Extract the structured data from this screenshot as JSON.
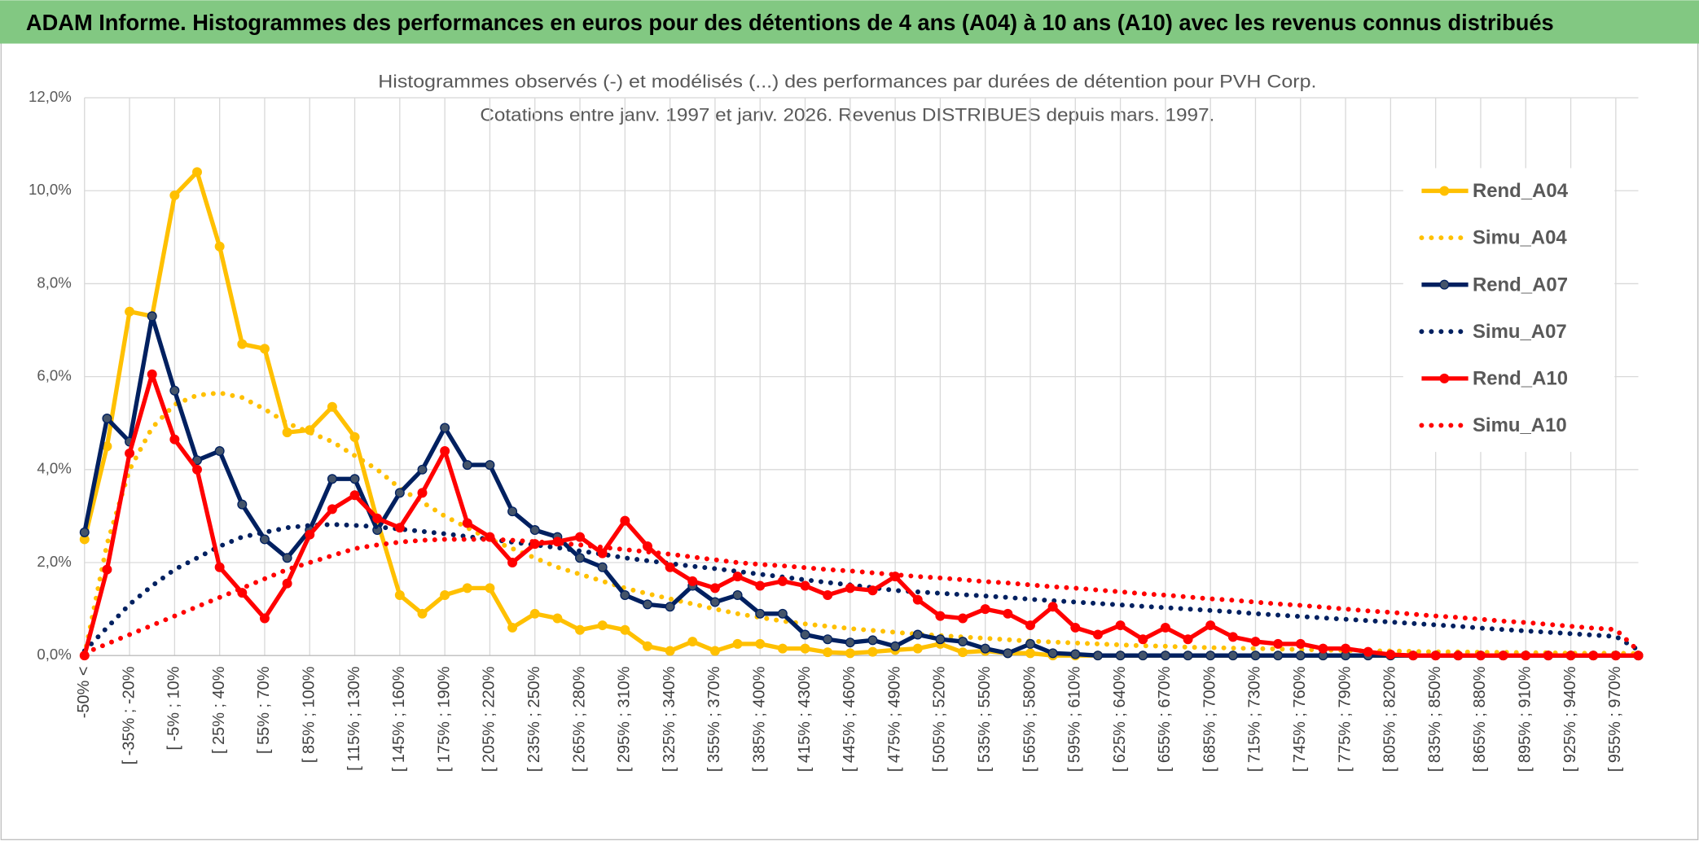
{
  "header": {
    "title": "ADAM Informe. Histogrammes des performances en euros pour des détentions de 4 ans (A04) à 10 ans (A10) avec les revenus connus distribués"
  },
  "chart_data": {
    "type": "line",
    "title": "Histogrammes observés (-) et modélisés (...) des performances par durées de détention pour PVH Corp.",
    "subtitle": "Cotations entre janv. 1997 et janv. 2026. Revenus DISTRIBUES depuis mars. 1997.",
    "categories": [
      "-50% <",
      null,
      "[ -35% ; -20%",
      null,
      "[ -5% ; 10%",
      null,
      "[ 25% ; 40%",
      null,
      "[ 55% ; 70%",
      null,
      "[ 85% ; 100%",
      null,
      "[ 115% ; 130%",
      null,
      "[ 145% ; 160%",
      null,
      "[ 175% ; 190%",
      null,
      "[ 205% ; 220%",
      null,
      "[ 235% ; 250%",
      null,
      "[ 265% ; 280%",
      null,
      "[ 295% ; 310%",
      null,
      "[ 325% ; 340%",
      null,
      "[ 355% ; 370%",
      null,
      "[ 385% ; 400%",
      null,
      "[ 415% ; 430%",
      null,
      "[ 445% ; 460%",
      null,
      "[ 475% ; 490%",
      null,
      "[ 505% ; 520%",
      null,
      "[ 535% ; 550%",
      null,
      "[ 565% ; 580%",
      null,
      "[ 595% ; 610%",
      null,
      "[ 625% ; 640%",
      null,
      "[ 655% ; 670%",
      null,
      "[ 685% ; 700%",
      null,
      "[ 715% ; 730%",
      null,
      "[ 745% ; 760%",
      null,
      "[ 775% ; 790%",
      null,
      "[ 805% ; 820%",
      null,
      "[ 835% ; 850%",
      null,
      "[ 865% ; 880%",
      null,
      "[ 895% ; 910%",
      null,
      "[ 925% ; 940%",
      null,
      "[ 955% ; 970%",
      null
    ],
    "series": [
      {
        "name": "Rend_A04",
        "color": "#FFC000",
        "style": "solid",
        "markers": true,
        "values": [
          2.5,
          4.5,
          7.4,
          7.3,
          9.9,
          10.4,
          8.8,
          6.7,
          6.6,
          4.8,
          4.85,
          5.35,
          4.7,
          2.9,
          1.3,
          0.9,
          1.3,
          1.45,
          1.45,
          0.6,
          0.9,
          0.8,
          0.55,
          0.65,
          0.55,
          0.2,
          0.1,
          0.3,
          0.1,
          0.25,
          0.25,
          0.15,
          0.15,
          0.07,
          0.05,
          0.08,
          0.12,
          0.15,
          0.25,
          0.07,
          0.1,
          0.05,
          0.05,
          0,
          0,
          0,
          0,
          0,
          0,
          0,
          0,
          0,
          0,
          0,
          0,
          0,
          0,
          0,
          0,
          0,
          0,
          0,
          0,
          0,
          0,
          0,
          0,
          0,
          0,
          0
        ]
      },
      {
        "name": "Simu_A04",
        "color": "#FFC000",
        "style": "dotted",
        "markers": false,
        "values": [
          0,
          2.4,
          4.0,
          4.9,
          5.4,
          5.6,
          5.65,
          5.55,
          5.3,
          5.0,
          4.8,
          4.6,
          4.3,
          4.0,
          3.6,
          3.3,
          3.0,
          2.75,
          2.5,
          2.3,
          2.1,
          1.9,
          1.75,
          1.6,
          1.45,
          1.33,
          1.22,
          1.11,
          1.0,
          0.9,
          0.82,
          0.74,
          0.68,
          0.63,
          0.58,
          0.54,
          0.5,
          0.46,
          0.43,
          0.4,
          0.37,
          0.34,
          0.31,
          0.29,
          0.27,
          0.25,
          0.23,
          0.21,
          0.2,
          0.18,
          0.17,
          0.16,
          0.15,
          0.14,
          0.13,
          0.12,
          0.11,
          0.1,
          0.1,
          0.09,
          0.08,
          0.08,
          0.07,
          0.07,
          0.06,
          0.06,
          0.05,
          0.05,
          0.05,
          0.04
        ]
      },
      {
        "name": "Rend_A07",
        "color": "#002060",
        "style": "solid",
        "markers": true,
        "values": [
          2.65,
          5.1,
          4.6,
          7.3,
          5.7,
          4.2,
          4.4,
          3.25,
          2.5,
          2.1,
          2.7,
          3.8,
          3.8,
          2.7,
          3.5,
          4.0,
          4.9,
          4.1,
          4.1,
          3.1,
          2.7,
          2.55,
          2.1,
          1.9,
          1.3,
          1.1,
          1.05,
          1.5,
          1.15,
          1.3,
          0.9,
          0.9,
          0.45,
          0.35,
          0.28,
          0.33,
          0.2,
          0.45,
          0.35,
          0.3,
          0.15,
          0.05,
          0.25,
          0.05,
          0.03,
          0,
          0,
          0,
          0,
          0,
          0,
          0,
          0,
          0,
          0,
          0,
          0,
          0,
          0,
          0,
          0,
          0,
          0,
          0,
          0,
          0,
          0,
          0,
          0,
          0
        ]
      },
      {
        "name": "Simu_A07",
        "color": "#002060",
        "style": "dotted",
        "markers": false,
        "values": [
          0.1,
          0.6,
          1.1,
          1.5,
          1.85,
          2.1,
          2.35,
          2.55,
          2.65,
          2.75,
          2.8,
          2.82,
          2.8,
          2.77,
          2.72,
          2.67,
          2.62,
          2.56,
          2.5,
          2.44,
          2.38,
          2.32,
          2.25,
          2.18,
          2.1,
          2.04,
          1.98,
          1.92,
          1.87,
          1.81,
          1.75,
          1.69,
          1.63,
          1.57,
          1.52,
          1.46,
          1.4,
          1.37,
          1.34,
          1.31,
          1.28,
          1.25,
          1.21,
          1.18,
          1.15,
          1.12,
          1.09,
          1.06,
          1.03,
          1.0,
          0.97,
          0.94,
          0.9,
          0.87,
          0.84,
          0.81,
          0.78,
          0.75,
          0.72,
          0.69,
          0.66,
          0.63,
          0.59,
          0.56,
          0.53,
          0.5,
          0.47,
          0.44,
          0.41,
          0.12
        ]
      },
      {
        "name": "Rend_A10",
        "color": "#FF0000",
        "style": "solid",
        "markers": true,
        "values": [
          0,
          1.85,
          4.35,
          6.05,
          4.65,
          4.0,
          1.9,
          1.35,
          0.8,
          1.55,
          2.6,
          3.15,
          3.45,
          2.95,
          2.75,
          3.5,
          4.4,
          2.85,
          2.55,
          2.0,
          2.4,
          2.45,
          2.55,
          2.2,
          2.9,
          2.35,
          1.9,
          1.6,
          1.45,
          1.7,
          1.5,
          1.6,
          1.5,
          1.3,
          1.45,
          1.4,
          1.7,
          1.2,
          0.85,
          0.8,
          1.0,
          0.9,
          0.65,
          1.05,
          0.6,
          0.45,
          0.65,
          0.35,
          0.6,
          0.35,
          0.65,
          0.4,
          0.3,
          0.25,
          0.25,
          0.15,
          0.15,
          0.08,
          0.02,
          0,
          0,
          0,
          0,
          0,
          0,
          0,
          0,
          0,
          0,
          0
        ]
      },
      {
        "name": "Simu_A10",
        "color": "#FF0000",
        "style": "dotted",
        "markers": false,
        "values": [
          0.05,
          0.25,
          0.45,
          0.65,
          0.85,
          1.05,
          1.25,
          1.45,
          1.65,
          1.85,
          2.0,
          2.15,
          2.3,
          2.38,
          2.44,
          2.48,
          2.5,
          2.5,
          2.5,
          2.48,
          2.45,
          2.42,
          2.38,
          2.33,
          2.28,
          2.23,
          2.18,
          2.12,
          2.06,
          2.0,
          1.96,
          1.93,
          1.89,
          1.85,
          1.82,
          1.78,
          1.74,
          1.7,
          1.67,
          1.63,
          1.59,
          1.56,
          1.52,
          1.48,
          1.45,
          1.41,
          1.37,
          1.33,
          1.3,
          1.26,
          1.22,
          1.19,
          1.15,
          1.11,
          1.08,
          1.04,
          1.0,
          0.96,
          0.93,
          0.89,
          0.85,
          0.82,
          0.78,
          0.74,
          0.71,
          0.67,
          0.63,
          0.59,
          0.56,
          0.1
        ]
      }
    ],
    "ylim": [
      0,
      12
    ],
    "yticks": [
      {
        "value": 0,
        "label": "0,0%"
      },
      {
        "value": 2,
        "label": "2,0%"
      },
      {
        "value": 4,
        "label": "4,0%"
      },
      {
        "value": 6,
        "label": "6,0%"
      },
      {
        "value": 8,
        "label": "8,0%"
      },
      {
        "value": 10,
        "label": "10,0%"
      },
      {
        "value": 12,
        "label": "12,0%"
      }
    ],
    "grid": true,
    "legend": "right"
  }
}
